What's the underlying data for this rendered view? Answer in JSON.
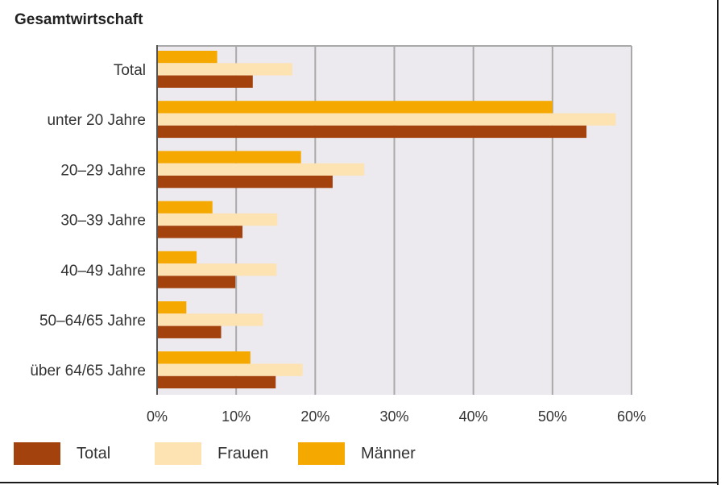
{
  "chart_data": {
    "type": "bar",
    "orientation": "horizontal",
    "title": "Gesamtwirtschaft",
    "categories": [
      "Total",
      "unter 20 Jahre",
      "20–29 Jahre",
      "30–39 Jahre",
      "40–49 Jahre",
      "50–64/65 Jahre",
      "über 64/65 Jahre"
    ],
    "series": [
      {
        "name": "Männer",
        "color": "#f5a800",
        "values": [
          7.6,
          50.0,
          18.2,
          7.0,
          5.0,
          3.7,
          11.8
        ]
      },
      {
        "name": "Frauen",
        "color": "#fde2b2",
        "values": [
          17.1,
          58.0,
          26.2,
          15.2,
          15.1,
          13.4,
          18.4
        ]
      },
      {
        "name": "Total",
        "color": "#a3420c",
        "values": [
          12.1,
          54.3,
          22.2,
          10.8,
          9.9,
          8.1,
          15.0
        ]
      }
    ],
    "xlim": [
      0,
      60
    ],
    "xticks": [
      0,
      10,
      20,
      30,
      40,
      50,
      60
    ],
    "xtick_labels": [
      "0%",
      "10%",
      "20%",
      "30%",
      "40%",
      "50%",
      "60%"
    ],
    "grid": true,
    "legend_position": "bottom",
    "legend": [
      {
        "name": "Total",
        "color": "#a3420c"
      },
      {
        "name": "Frauen",
        "color": "#fde2b2"
      },
      {
        "name": "Männer",
        "color": "#f5a800"
      }
    ],
    "plot_background": "#eceaee",
    "grid_color": "#a9a9a9"
  }
}
